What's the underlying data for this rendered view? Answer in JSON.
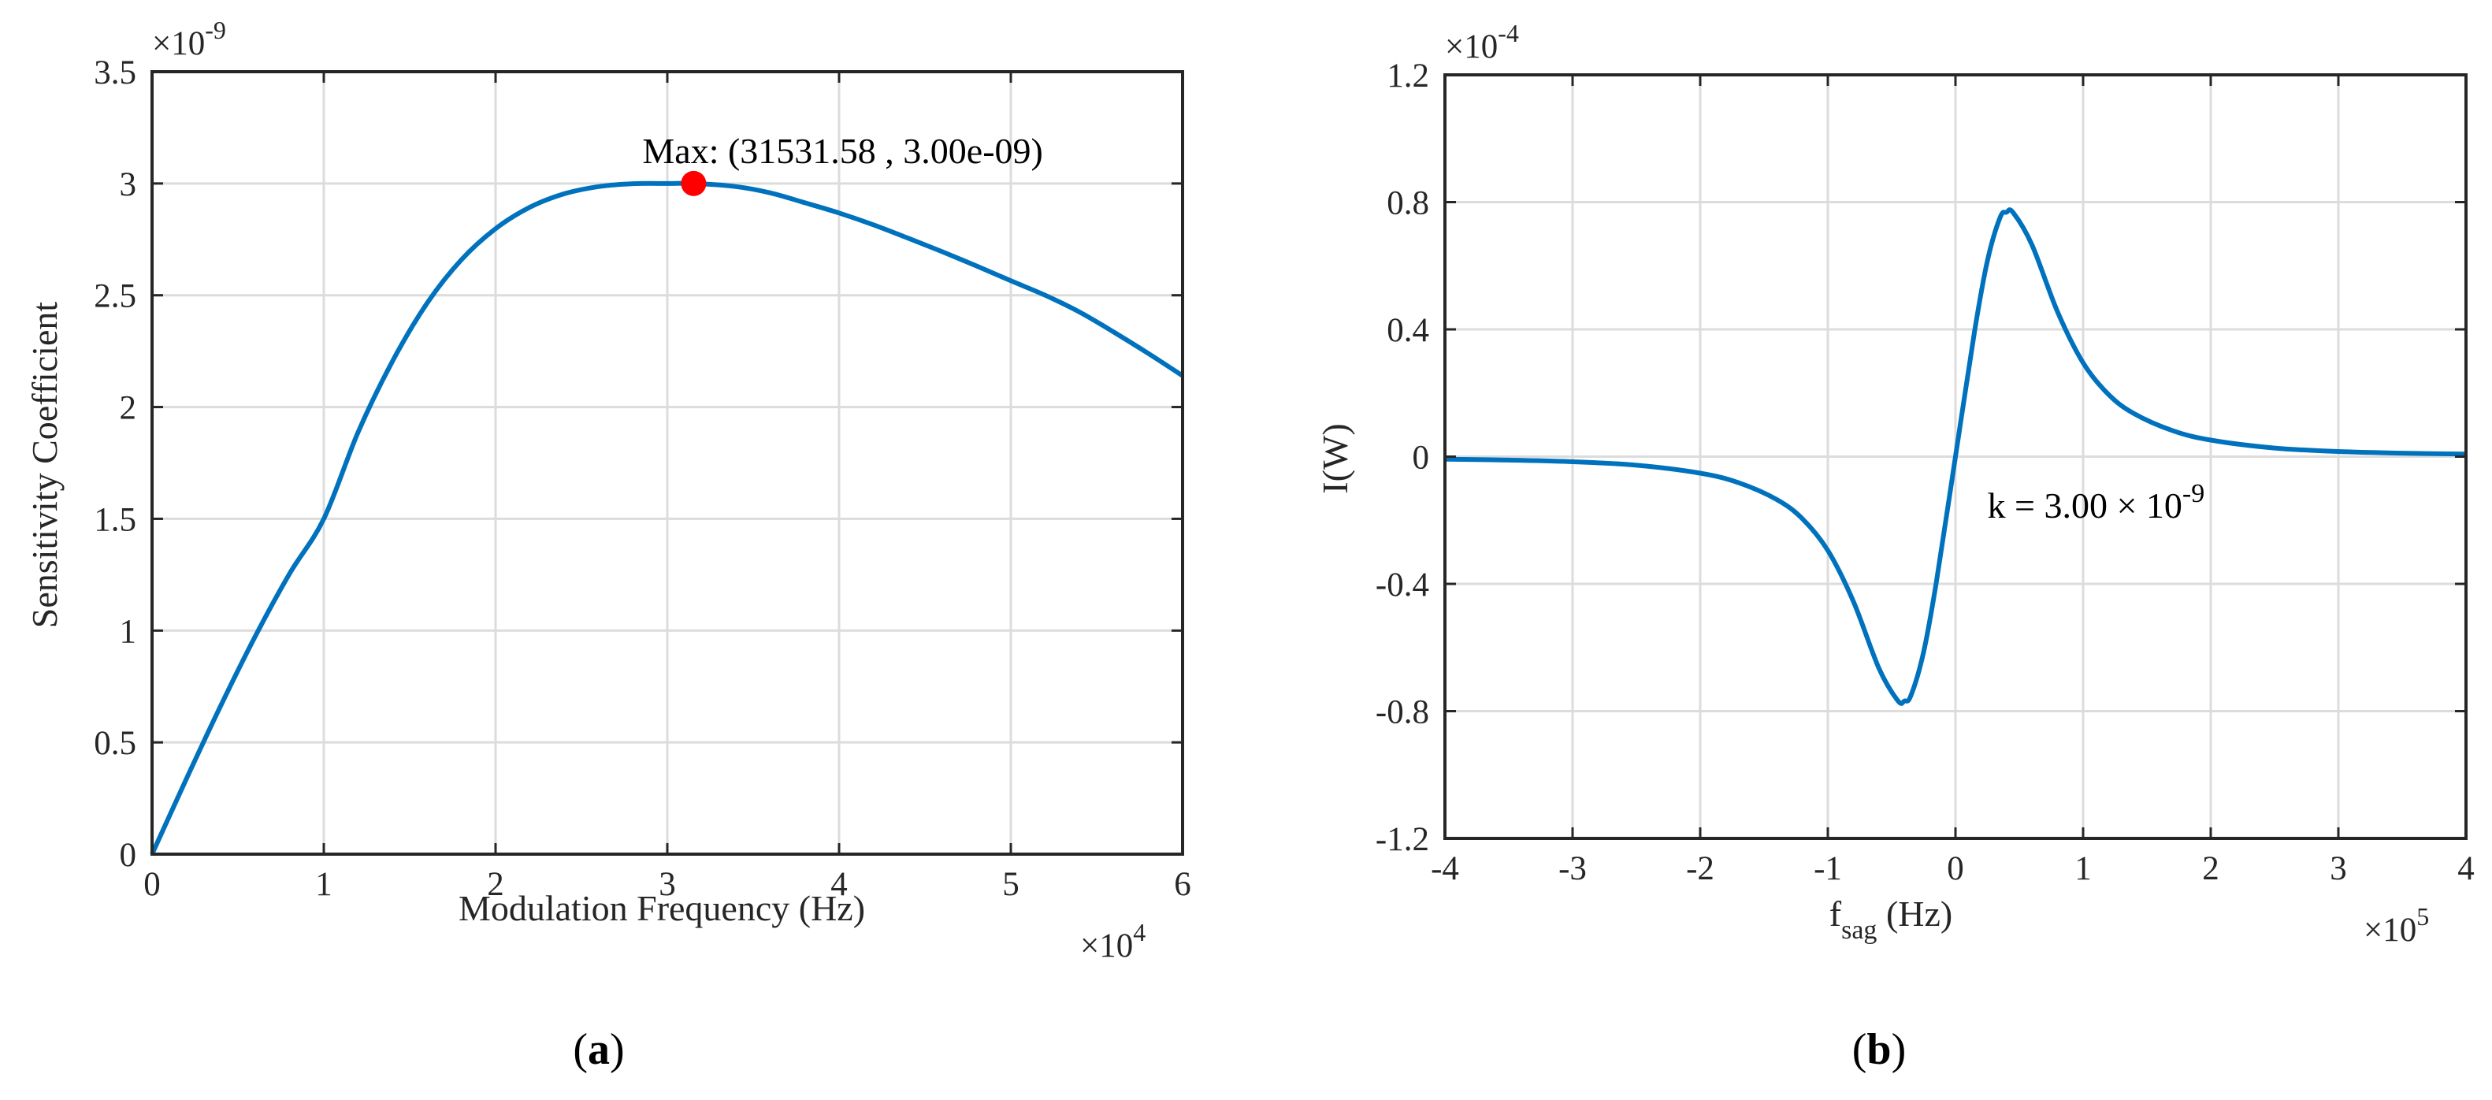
{
  "chart_data": [
    {
      "type": "line",
      "panel_label_open": "(",
      "panel_label_letter": "a",
      "panel_label_close": ")",
      "xlabel": "Modulation Frequency  (Hz)",
      "ylabel": "Sensitivity Coefficient",
      "xlim": [
        0,
        60000
      ],
      "ylim": [
        0,
        3.5e-09
      ],
      "x_ticks": [
        0,
        10000,
        20000,
        30000,
        40000,
        50000,
        60000
      ],
      "x_tick_labels": [
        "0",
        "1",
        "2",
        "3",
        "4",
        "5",
        "6"
      ],
      "y_ticks": [
        0,
        5e-10,
        1e-09,
        1.5e-09,
        2e-09,
        2.5e-09,
        3e-09,
        3.5e-09
      ],
      "y_tick_labels": [
        "0",
        "0.5",
        "1",
        "1.5",
        "2",
        "2.5",
        "3",
        "3.5"
      ],
      "x_multiplier": {
        "times": "×",
        "base": "10",
        "exponent": "4"
      },
      "y_multiplier": {
        "times": "×",
        "base": "10",
        "exponent": "-9"
      },
      "grid": true,
      "line_color": "#0072BD",
      "marker_color": "#FF0000",
      "series": [
        {
          "x": [
            0,
            2000,
            4000,
            6000,
            8000,
            10000,
            12000,
            14000,
            16000,
            18000,
            20000,
            22000,
            24000,
            26000,
            28000,
            30000,
            31531.58,
            34000,
            36000,
            38000,
            40000,
            42000,
            44000,
            46000,
            48000,
            50000,
            52000,
            54000,
            56000,
            58000,
            60000
          ],
          "y": [
            0,
            3.37e-10,
            6.64e-10,
            9.73e-10,
            1.254e-09,
            1.5e-09,
            1.888e-09,
            2.205e-09,
            2.463e-09,
            2.658e-09,
            2.798e-09,
            2.894e-09,
            2.954e-09,
            2.986e-09,
            2.999e-09,
            3e-09,
            3e-09,
            2.986e-09,
            2.958e-09,
            2.914e-09,
            2.868e-09,
            2.815e-09,
            2.756e-09,
            2.695e-09,
            2.631e-09,
            2.565e-09,
            2.5e-09,
            2.425e-09,
            2.335e-09,
            2.24e-09,
            2.14e-09
          ]
        }
      ],
      "marker": {
        "x": 31531.58,
        "y": 3e-09
      },
      "annotation": "Max: (31531.58 , 3.00e-09)"
    },
    {
      "type": "line",
      "panel_label_open": "(",
      "panel_label_letter": "b",
      "panel_label_close": ")",
      "xlabel_main": "f",
      "xlabel_sub": "sag",
      "xlabel_rest": " (Hz)",
      "ylabel": "I(W)",
      "xlim": [
        -400000,
        400000
      ],
      "ylim": [
        -0.00012,
        0.00012
      ],
      "x_ticks": [
        -400000,
        -300000,
        -200000,
        -100000,
        0,
        100000,
        200000,
        300000,
        400000
      ],
      "x_tick_labels": [
        "-4",
        "-3",
        "-2",
        "-1",
        "0",
        "1",
        "2",
        "3",
        "4"
      ],
      "y_ticks": [
        -0.00012,
        -8e-05,
        -4e-05,
        0,
        4e-05,
        8e-05,
        0.00012
      ],
      "y_tick_labels": [
        "-1.2",
        "-0.8",
        "-0.4",
        "0",
        "0.4",
        "0.8",
        "1.2"
      ],
      "x_multiplier": {
        "times": "×",
        "base": "10",
        "exponent": "5"
      },
      "y_multiplier": {
        "times": "×",
        "base": "10",
        "exponent": "-4"
      },
      "grid": true,
      "line_color": "#0072BD",
      "series": [
        {
          "x": [
            -400000,
            -350000,
            -300000,
            -250000,
            -200000,
            -170000,
            -140000,
            -120000,
            -100000,
            -80000,
            -60000,
            -45000,
            -40000,
            -35000,
            -25000,
            -15000,
            0,
            15000,
            25000,
            35000,
            40000,
            45000,
            60000,
            80000,
            100000,
            120000,
            140000,
            170000,
            200000,
            250000,
            300000,
            350000,
            400000
          ],
          "y": [
            -8e-07,
            -1.1e-06,
            -1.6e-06,
            -2.7e-06,
            -5.2e-06,
            -8.2e-06,
            -1.35e-05,
            -1.95e-05,
            -2.95e-05,
            -4.55e-05,
            -6.65e-05,
            -7.68e-05,
            -7.68e-05,
            -7.52e-05,
            -6.15e-05,
            -3.95e-05,
            0,
            3.95e-05,
            6.15e-05,
            7.52e-05,
            7.68e-05,
            7.68e-05,
            6.65e-05,
            4.55e-05,
            2.95e-05,
            1.95e-05,
            1.35e-05,
            8.2e-06,
            5.2e-06,
            2.7e-06,
            1.6e-06,
            1.1e-06,
            8e-07
          ]
        }
      ],
      "annotation_text": "k = 3.00 × 10",
      "annotation_exponent": "-9",
      "annotation_anchor": {
        "x": 25000,
        "y": -1.3e-05
      }
    }
  ]
}
